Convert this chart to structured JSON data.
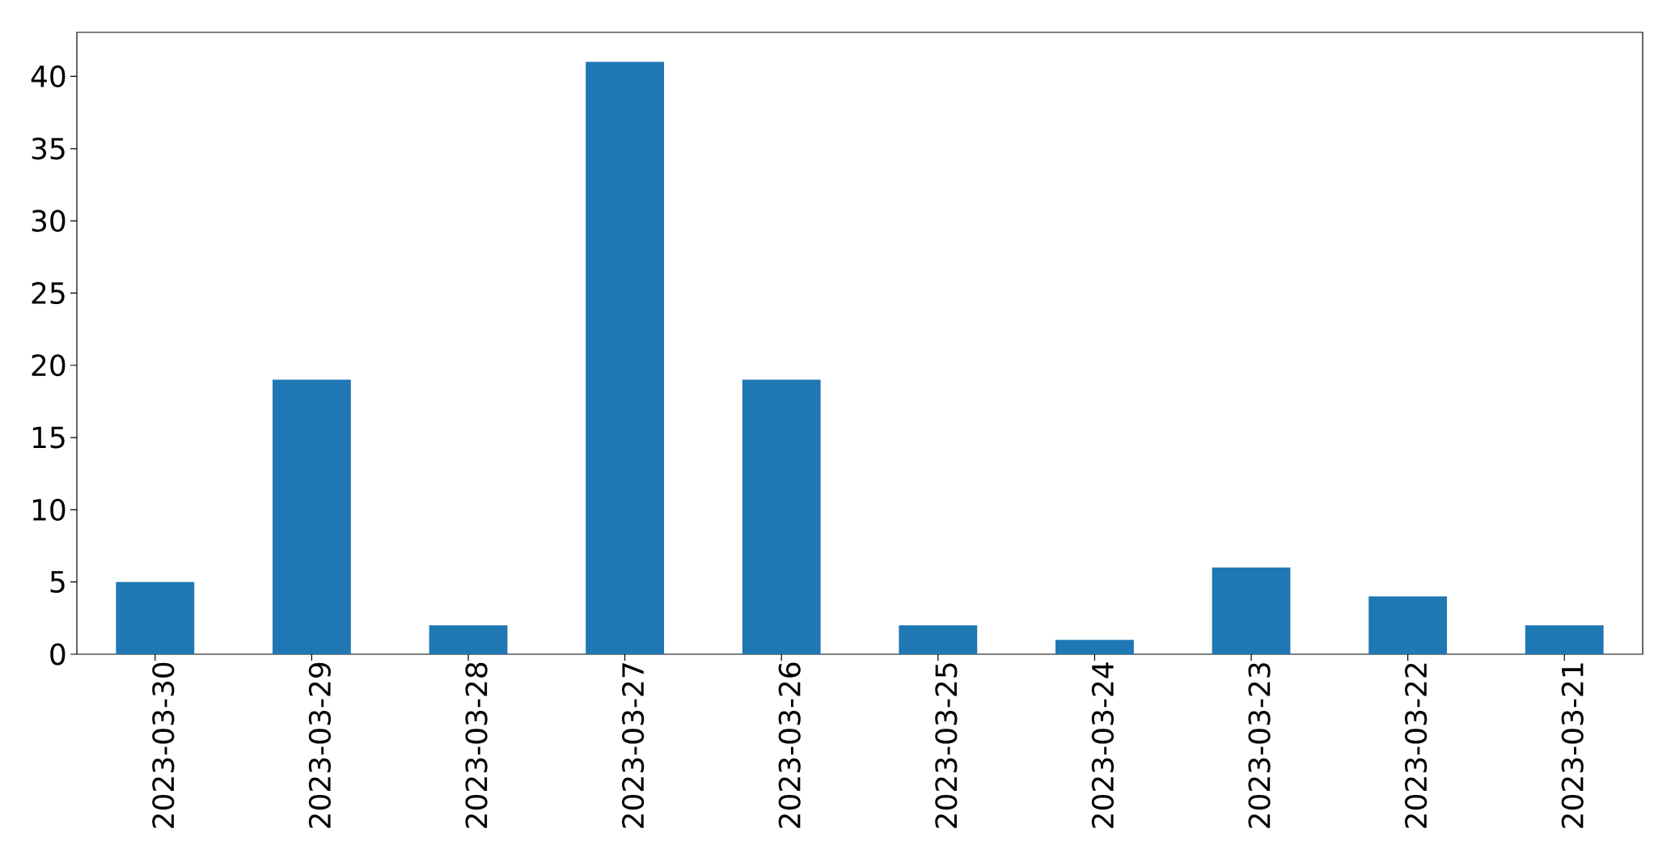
{
  "chart_data": {
    "type": "bar",
    "categories": [
      "2023-03-30",
      "2023-03-29",
      "2023-03-28",
      "2023-03-27",
      "2023-03-26",
      "2023-03-25",
      "2023-03-24",
      "2023-03-23",
      "2023-03-22",
      "2023-03-21"
    ],
    "values": [
      5,
      19,
      2,
      41,
      19,
      2,
      1,
      6,
      4,
      2
    ],
    "color": "#1f77b4",
    "ylim": [
      0,
      43.05
    ],
    "yticks": [
      0,
      5,
      10,
      15,
      20,
      25,
      30,
      35,
      40
    ]
  }
}
